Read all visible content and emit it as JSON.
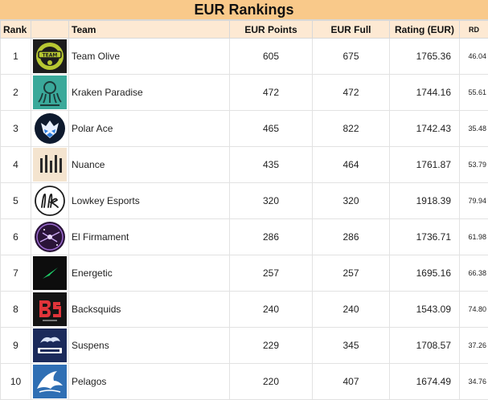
{
  "title": "EUR Rankings",
  "headers": {
    "rank": "Rank",
    "team": "Team",
    "eur_points": "EUR Points",
    "eur_full": "EUR Full",
    "rating": "Rating (EUR)",
    "rd": "RD"
  },
  "rows": [
    {
      "rank": "1",
      "team": "Team Olive",
      "logo_icon": "team-olive-logo-icon",
      "eur_points": "605",
      "eur_full": "675",
      "rating": "1765.36",
      "rd": "46.04"
    },
    {
      "rank": "2",
      "team": "Kraken Paradise",
      "logo_icon": "kraken-paradise-logo-icon",
      "eur_points": "472",
      "eur_full": "472",
      "rating": "1744.16",
      "rd": "55.61"
    },
    {
      "rank": "3",
      "team": "Polar Ace",
      "logo_icon": "polar-ace-logo-icon",
      "eur_points": "465",
      "eur_full": "822",
      "rating": "1742.43",
      "rd": "35.48"
    },
    {
      "rank": "4",
      "team": "Nuance",
      "logo_icon": "nuance-logo-icon",
      "eur_points": "435",
      "eur_full": "464",
      "rating": "1761.87",
      "rd": "53.79"
    },
    {
      "rank": "5",
      "team": "Lowkey Esports",
      "logo_icon": "lowkey-esports-logo-icon",
      "eur_points": "320",
      "eur_full": "320",
      "rating": "1918.39",
      "rd": "79.94"
    },
    {
      "rank": "6",
      "team": "El Firmament",
      "logo_icon": "el-firmament-logo-icon",
      "eur_points": "286",
      "eur_full": "286",
      "rating": "1736.71",
      "rd": "61.98"
    },
    {
      "rank": "7",
      "team": "Energetic",
      "logo_icon": "energetic-logo-icon",
      "eur_points": "257",
      "eur_full": "257",
      "rating": "1695.16",
      "rd": "66.38"
    },
    {
      "rank": "8",
      "team": "Backsquids",
      "logo_icon": "backsquids-logo-icon",
      "eur_points": "240",
      "eur_full": "240",
      "rating": "1543.09",
      "rd": "74.80"
    },
    {
      "rank": "9",
      "team": "Suspens",
      "logo_icon": "suspens-logo-icon",
      "eur_points": "229",
      "eur_full": "345",
      "rating": "1708.57",
      "rd": "37.26"
    },
    {
      "rank": "10",
      "team": "Pelagos",
      "logo_icon": "pelagos-logo-icon",
      "eur_points": "220",
      "eur_full": "407",
      "rating": "1674.49",
      "rd": "34.76"
    }
  ],
  "colors": {
    "title_background": "#f9c98a",
    "header_background": "#fde9d3",
    "grid": "#e2e2e2"
  }
}
